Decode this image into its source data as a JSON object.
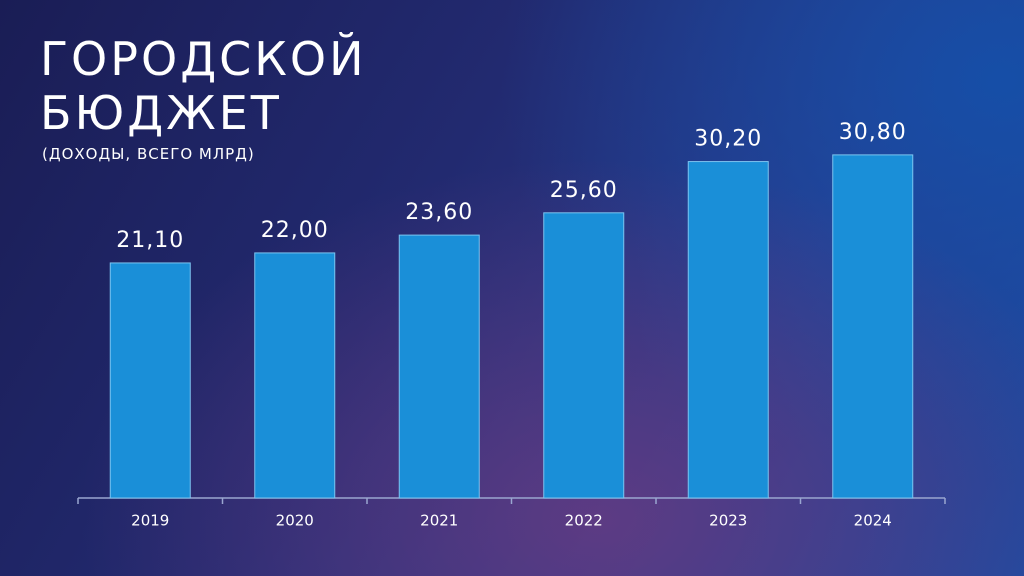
{
  "chart_data": {
    "type": "bar",
    "title": "ГОРОДСКОЙ БЮДЖЕТ",
    "subtitle": "(ДОХОДЫ, ВСЕГО МЛРД)",
    "categories": [
      "2019",
      "2020",
      "2021",
      "2022",
      "2023",
      "2024"
    ],
    "values": [
      21.1,
      22.0,
      23.6,
      25.6,
      30.2,
      30.8
    ],
    "value_labels": [
      "21,10",
      "22,00",
      "23,60",
      "25,60",
      "30,20",
      "30,80"
    ],
    "color": "#1a8fd8"
  }
}
